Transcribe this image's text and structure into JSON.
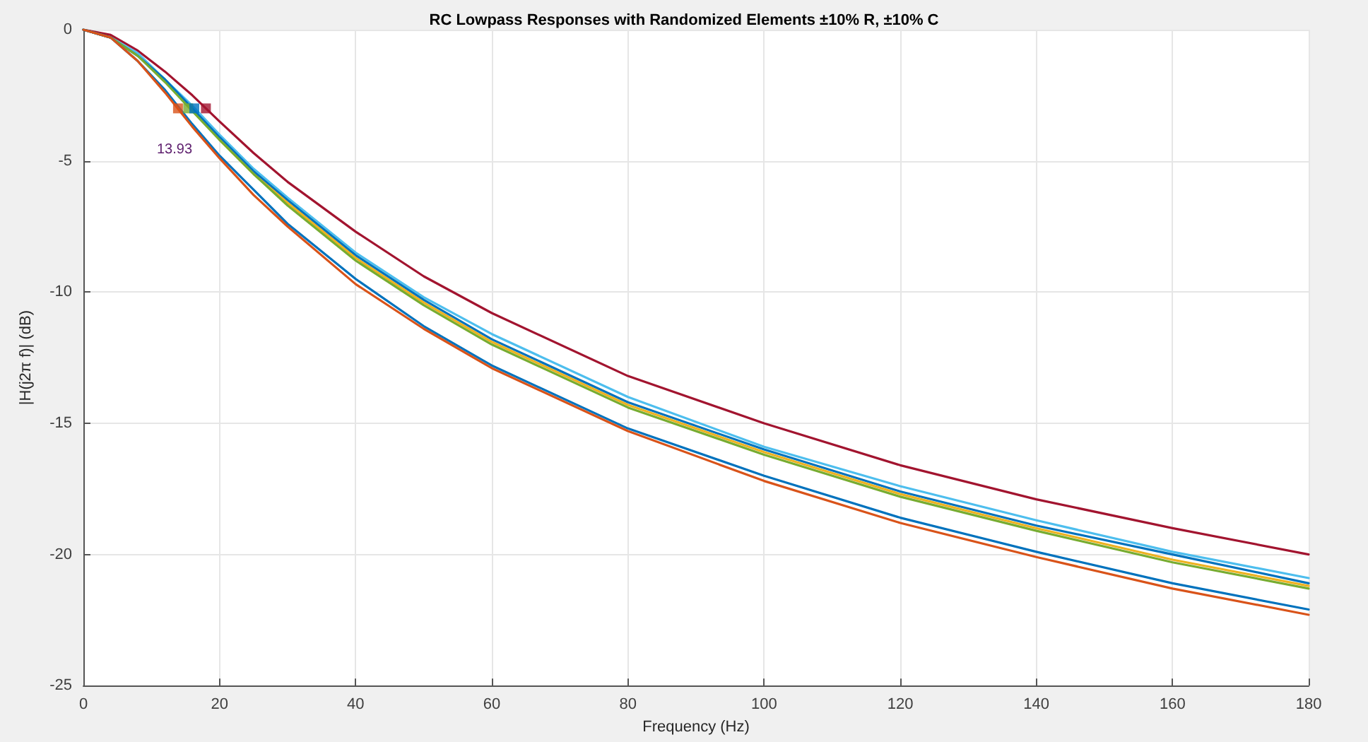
{
  "chart_data": {
    "type": "line",
    "title": "RC Lowpass Responses with Randomized Elements ±10% R, ±10% C",
    "xlabel": "Frequency (Hz)",
    "ylabel": "|H(j2π f)| (dB)",
    "x": [
      0,
      4,
      8,
      12,
      16,
      20,
      25,
      30,
      40,
      50,
      60,
      80,
      100,
      120,
      140,
      160,
      180
    ],
    "series": [
      {
        "color": "#a2142f",
        "values": [
          0,
          -0.2,
          -0.8,
          -1.6,
          -2.5,
          -3.5,
          -4.7,
          -5.8,
          -7.7,
          -9.4,
          -10.8,
          -13.2,
          -15.0,
          -16.6,
          -17.9,
          -19.0,
          -20.0
        ]
      },
      {
        "color": "#4dbeee",
        "values": [
          0,
          -0.3,
          -0.9,
          -1.9,
          -2.9,
          -4.0,
          -5.3,
          -6.4,
          -8.5,
          -10.2,
          -11.6,
          -14.0,
          -15.9,
          -17.4,
          -18.7,
          -19.9,
          -20.9
        ]
      },
      {
        "color": "#0072bd",
        "values": [
          0,
          -0.3,
          -1.0,
          -1.9,
          -3.0,
          -4.1,
          -5.4,
          -6.5,
          -8.6,
          -10.3,
          -11.8,
          -14.2,
          -16.0,
          -17.6,
          -18.9,
          -20.0,
          -21.1
        ]
      },
      {
        "color": "#edb120",
        "values": [
          null,
          null,
          null,
          null,
          null,
          -4.2,
          -5.5,
          -6.6,
          -8.7,
          -10.4,
          -11.9,
          -14.3,
          -16.1,
          -17.7,
          -19.0,
          -20.2,
          -21.2
        ]
      },
      {
        "color": "#77ac30",
        "values": [
          0,
          -0.3,
          -1.0,
          -2.0,
          -3.1,
          -4.2,
          -5.5,
          -6.7,
          -8.8,
          -10.5,
          -12.0,
          -14.4,
          -16.2,
          -17.8,
          -19.1,
          -20.3,
          -21.3
        ]
      },
      {
        "color": "#0072bd",
        "values": [
          0,
          -0.3,
          -1.2,
          -2.3,
          -3.6,
          -4.8,
          -6.1,
          -7.4,
          -9.5,
          -11.3,
          -12.8,
          -15.2,
          -17.0,
          -18.6,
          -19.9,
          -21.1,
          -22.1
        ]
      },
      {
        "color": "#d95319",
        "values": [
          0,
          -0.3,
          -1.2,
          -2.4,
          -3.7,
          -4.9,
          -6.3,
          -7.5,
          -9.7,
          -11.4,
          -12.9,
          -15.3,
          -17.2,
          -18.8,
          -20.1,
          -21.3,
          -22.3
        ]
      },
      {
        "type": "scatter",
        "x": [
          13.9,
          15.4,
          16.3,
          18.0
        ],
        "values": [
          -3,
          -3,
          -3,
          -3
        ],
        "colors": [
          "#d95319",
          "#77ac30",
          "#0072bd",
          "#a2142f"
        ],
        "marker": "square"
      }
    ],
    "xlim": [
      0,
      180
    ],
    "xticks": [
      0,
      20,
      40,
      60,
      80,
      100,
      120,
      140,
      160,
      180
    ],
    "ylim": [
      -25,
      0
    ],
    "yticks": [
      -25,
      -20,
      -15,
      -10,
      -5,
      0
    ],
    "grid": true,
    "line_style": "solid",
    "marker": "none",
    "annotations": [
      "13.93"
    ]
  }
}
